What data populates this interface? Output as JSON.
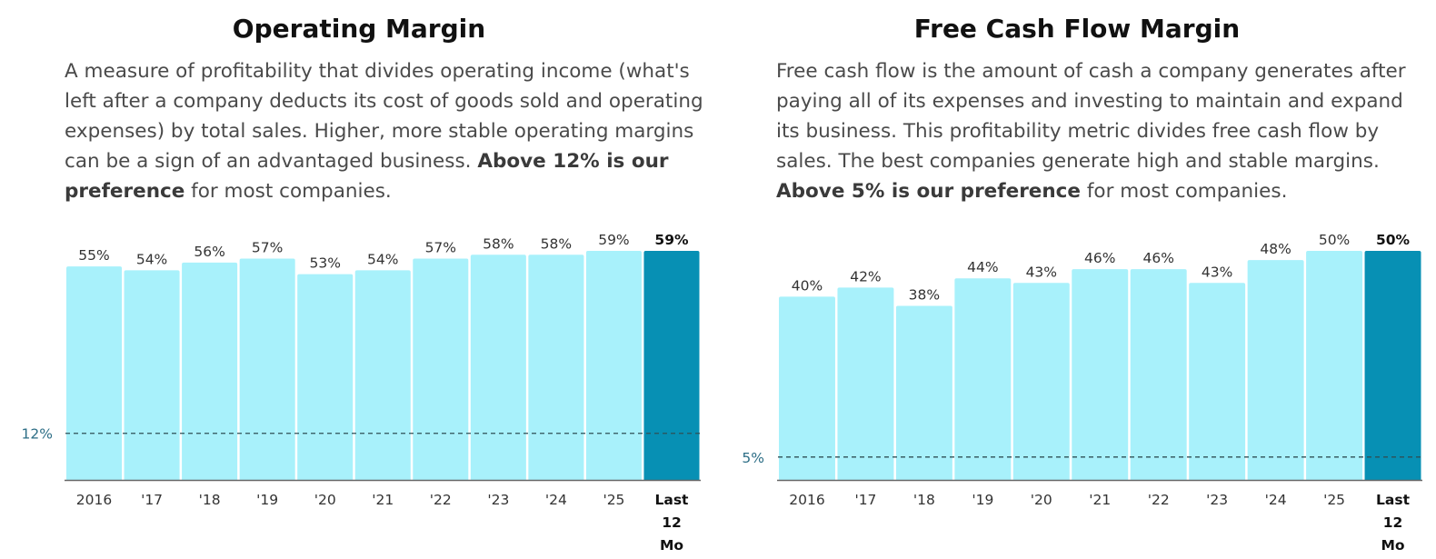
{
  "colors": {
    "bar": "#a8f1fb",
    "bar_highlight": "#0790b4",
    "axis": "#666666",
    "ref_line": "#2f4f55"
  },
  "chart_data": [
    {
      "type": "bar",
      "title": "Operating Margin",
      "description": {
        "text_before": "A measure of profitability that divides operating income (what's left after a company deducts its cost of goods sold and operating expenses) by total sales. Higher, more stable operating margins can be a sign of an advantaged business.",
        "emphasis": "Above 12% is our preference",
        "text_after": " for most companies."
      },
      "categories": [
        "2016",
        "'17",
        "'18",
        "'19",
        "'20",
        "'21",
        "'22",
        "'23",
        "'24",
        "'25",
        "Last 12 Mo"
      ],
      "values": [
        55,
        54,
        56,
        57,
        53,
        54,
        57,
        58,
        58,
        59,
        59
      ],
      "value_labels": [
        "55%",
        "54%",
        "56%",
        "57%",
        "53%",
        "54%",
        "57%",
        "58%",
        "58%",
        "59%",
        "59%"
      ],
      "highlight_index": 10,
      "reference": {
        "value": 12,
        "label": "12%"
      },
      "ylim": [
        0,
        59
      ]
    },
    {
      "type": "bar",
      "title": "Free Cash Flow Margin",
      "description": {
        "text_before": "Free cash flow is the amount of cash a company generates after paying all of its expenses and investing to maintain and expand its business. This profitability metric divides free cash flow by sales. The best companies generate high and stable margins.",
        "emphasis": "Above 5% is our preference",
        "text_after": " for most companies."
      },
      "categories": [
        "2016",
        "'17",
        "'18",
        "'19",
        "'20",
        "'21",
        "'22",
        "'23",
        "'24",
        "'25",
        "Last 12 Mo"
      ],
      "values": [
        40,
        42,
        38,
        44,
        43,
        46,
        46,
        43,
        48,
        50,
        50
      ],
      "value_labels": [
        "40%",
        "42%",
        "38%",
        "44%",
        "43%",
        "46%",
        "46%",
        "43%",
        "48%",
        "50%",
        "50%"
      ],
      "highlight_index": 10,
      "reference": {
        "value": 5,
        "label": "5%"
      },
      "ylim": [
        0,
        50
      ]
    }
  ]
}
